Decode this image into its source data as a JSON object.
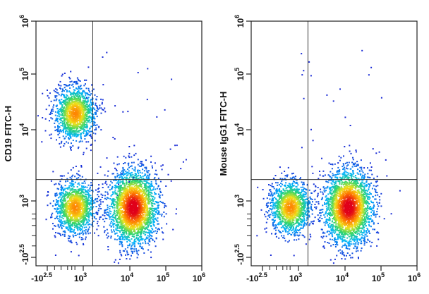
{
  "chart_data": [
    {
      "type": "scatter",
      "subtype": "flow-cytometry-density-plot",
      "ylabel": "CD19 FITC-H",
      "xlabel": "",
      "x_scale": "biexponential",
      "y_scale": "biexponential",
      "x_ticks": [
        {
          "mant": "-10",
          "exp": "2.5"
        },
        {
          "mant": "10",
          "exp": "3"
        },
        {
          "mant": "10",
          "exp": "4"
        },
        {
          "mant": "10",
          "exp": "5"
        },
        {
          "mant": "10",
          "exp": "6"
        }
      ],
      "y_ticks": [
        {
          "mant": "-10",
          "exp": "2.5"
        },
        {
          "mant": "10",
          "exp": "3"
        },
        {
          "mant": "10",
          "exp": "4"
        },
        {
          "mant": "10",
          "exp": "5"
        },
        {
          "mant": "10",
          "exp": "6"
        }
      ],
      "quadrant_gate": {
        "x": 1600,
        "y": 2000
      },
      "populations": [
        {
          "x": 300,
          "y": 20000,
          "spread": "medium",
          "density": "high"
        },
        {
          "x": 300,
          "y": 600,
          "spread": "medium",
          "density": "high"
        },
        {
          "x": 12000,
          "y": 600,
          "spread": "large",
          "density": "very-high"
        }
      ],
      "color_scale": [
        "#1a2bd6",
        "#00b4ff",
        "#2fd66b",
        "#f2e11a",
        "#ff7a00",
        "#e0001a"
      ],
      "grid": false
    },
    {
      "type": "scatter",
      "subtype": "flow-cytometry-density-plot",
      "ylabel": "Mouse IgG1 FITC-H",
      "xlabel": "",
      "x_scale": "biexponential",
      "y_scale": "biexponential",
      "x_ticks": [
        {
          "mant": "-10",
          "exp": "2.5"
        },
        {
          "mant": "10",
          "exp": "3"
        },
        {
          "mant": "10",
          "exp": "4"
        },
        {
          "mant": "10",
          "exp": "5"
        },
        {
          "mant": "10",
          "exp": "6"
        }
      ],
      "y_ticks": [
        {
          "mant": "-10",
          "exp": "2.5"
        },
        {
          "mant": "10",
          "exp": "3"
        },
        {
          "mant": "10",
          "exp": "4"
        },
        {
          "mant": "10",
          "exp": "5"
        },
        {
          "mant": "10",
          "exp": "6"
        }
      ],
      "quadrant_gate": {
        "x": 1600,
        "y": 2000
      },
      "populations": [
        {
          "x": 300,
          "y": 600,
          "spread": "medium",
          "density": "high"
        },
        {
          "x": 12000,
          "y": 600,
          "spread": "large",
          "density": "very-high"
        }
      ],
      "color_scale": [
        "#1a2bd6",
        "#00b4ff",
        "#2fd66b",
        "#f2e11a",
        "#ff7a00",
        "#e0001a"
      ],
      "grid": false
    }
  ]
}
